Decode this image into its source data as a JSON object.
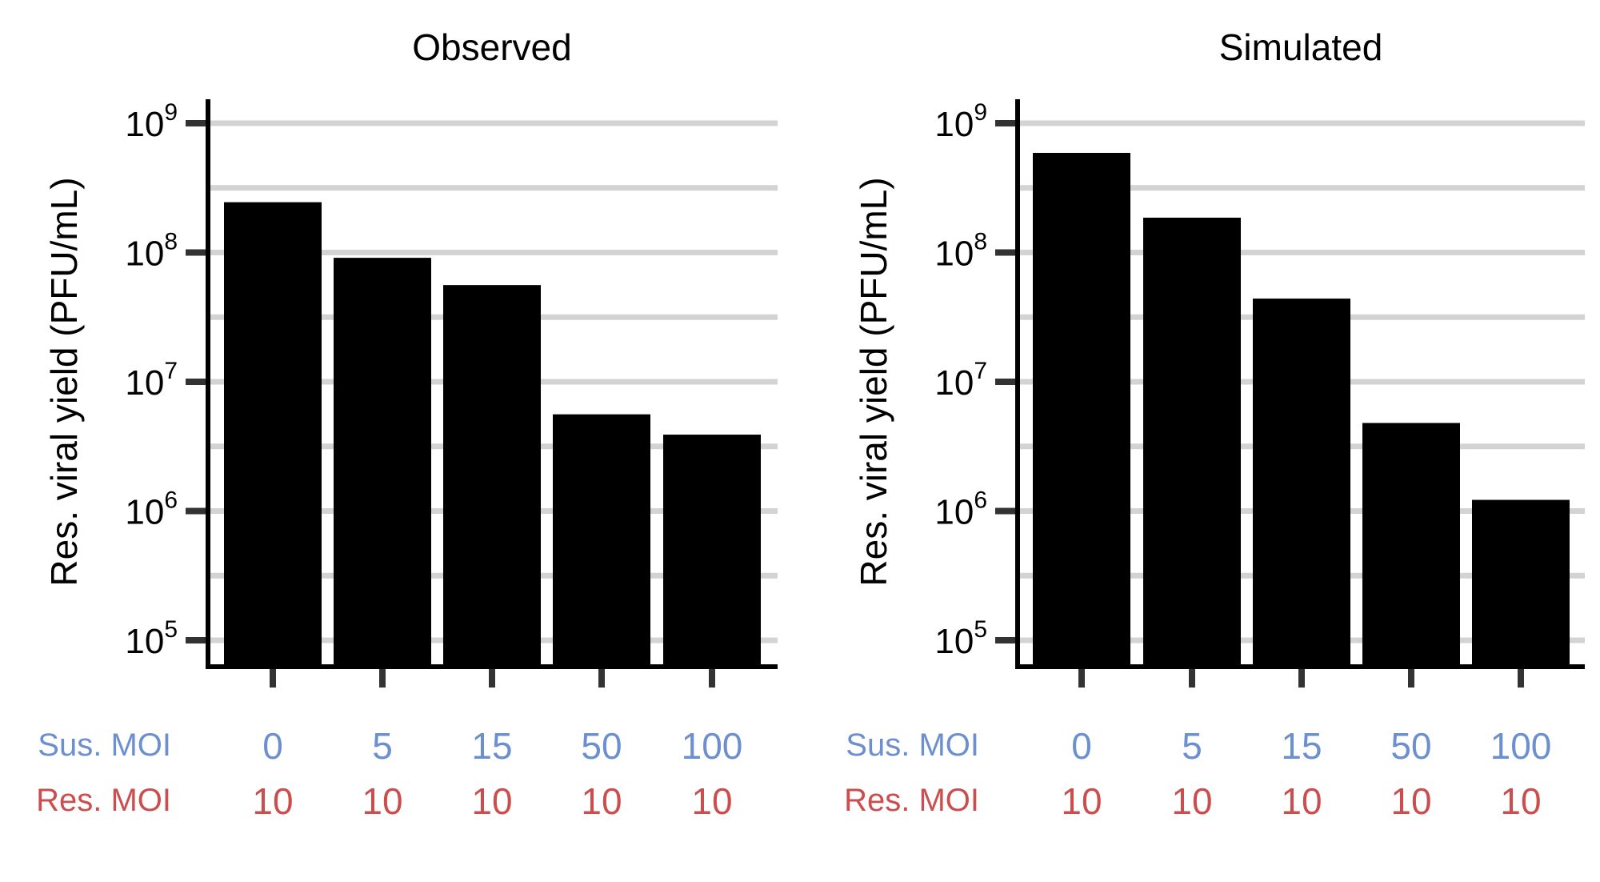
{
  "colors": {
    "bar": "#000000",
    "grid": "#d3d3d3",
    "sus_moi": "#6b8fcf",
    "res_moi": "#cc4d4d",
    "axis": "#000000",
    "tick": "#333333"
  },
  "row_labels": {
    "sus": "Sus. MOI",
    "res": "Res. MOI"
  },
  "chart_data": [
    {
      "type": "bar",
      "title": "Observed",
      "ylabel": "Res. viral yield (PFU/mL)",
      "yscale": "log",
      "ylim": [
        65000,
        1500000000
      ],
      "yticks": [
        {
          "exp": "5",
          "value": 100000
        },
        {
          "exp": "6",
          "value": 1000000
        },
        {
          "exp": "7",
          "value": 10000000
        },
        {
          "exp": "8",
          "value": 100000000
        },
        {
          "exp": "9",
          "value": 1000000000
        }
      ],
      "grid": true,
      "categories": [
        {
          "sus": "0",
          "res": "10"
        },
        {
          "sus": "5",
          "res": "10"
        },
        {
          "sus": "15",
          "res": "10"
        },
        {
          "sus": "50",
          "res": "10"
        },
        {
          "sus": "100",
          "res": "10"
        }
      ],
      "values": [
        245000000,
        91000000,
        56000000,
        5600000,
        3900000
      ]
    },
    {
      "type": "bar",
      "title": "Simulated",
      "ylabel": "Res. viral yield (PFU/mL)",
      "yscale": "log",
      "ylim": [
        65000,
        1500000000
      ],
      "yticks": [
        {
          "exp": "5",
          "value": 100000
        },
        {
          "exp": "6",
          "value": 1000000
        },
        {
          "exp": "7",
          "value": 10000000
        },
        {
          "exp": "8",
          "value": 100000000
        },
        {
          "exp": "9",
          "value": 1000000000
        }
      ],
      "grid": true,
      "categories": [
        {
          "sus": "0",
          "res": "10"
        },
        {
          "sus": "5",
          "res": "10"
        },
        {
          "sus": "15",
          "res": "10"
        },
        {
          "sus": "50",
          "res": "10"
        },
        {
          "sus": "100",
          "res": "10"
        }
      ],
      "values": [
        590000000,
        186000000,
        44000000,
        4800000,
        1220000
      ]
    }
  ]
}
